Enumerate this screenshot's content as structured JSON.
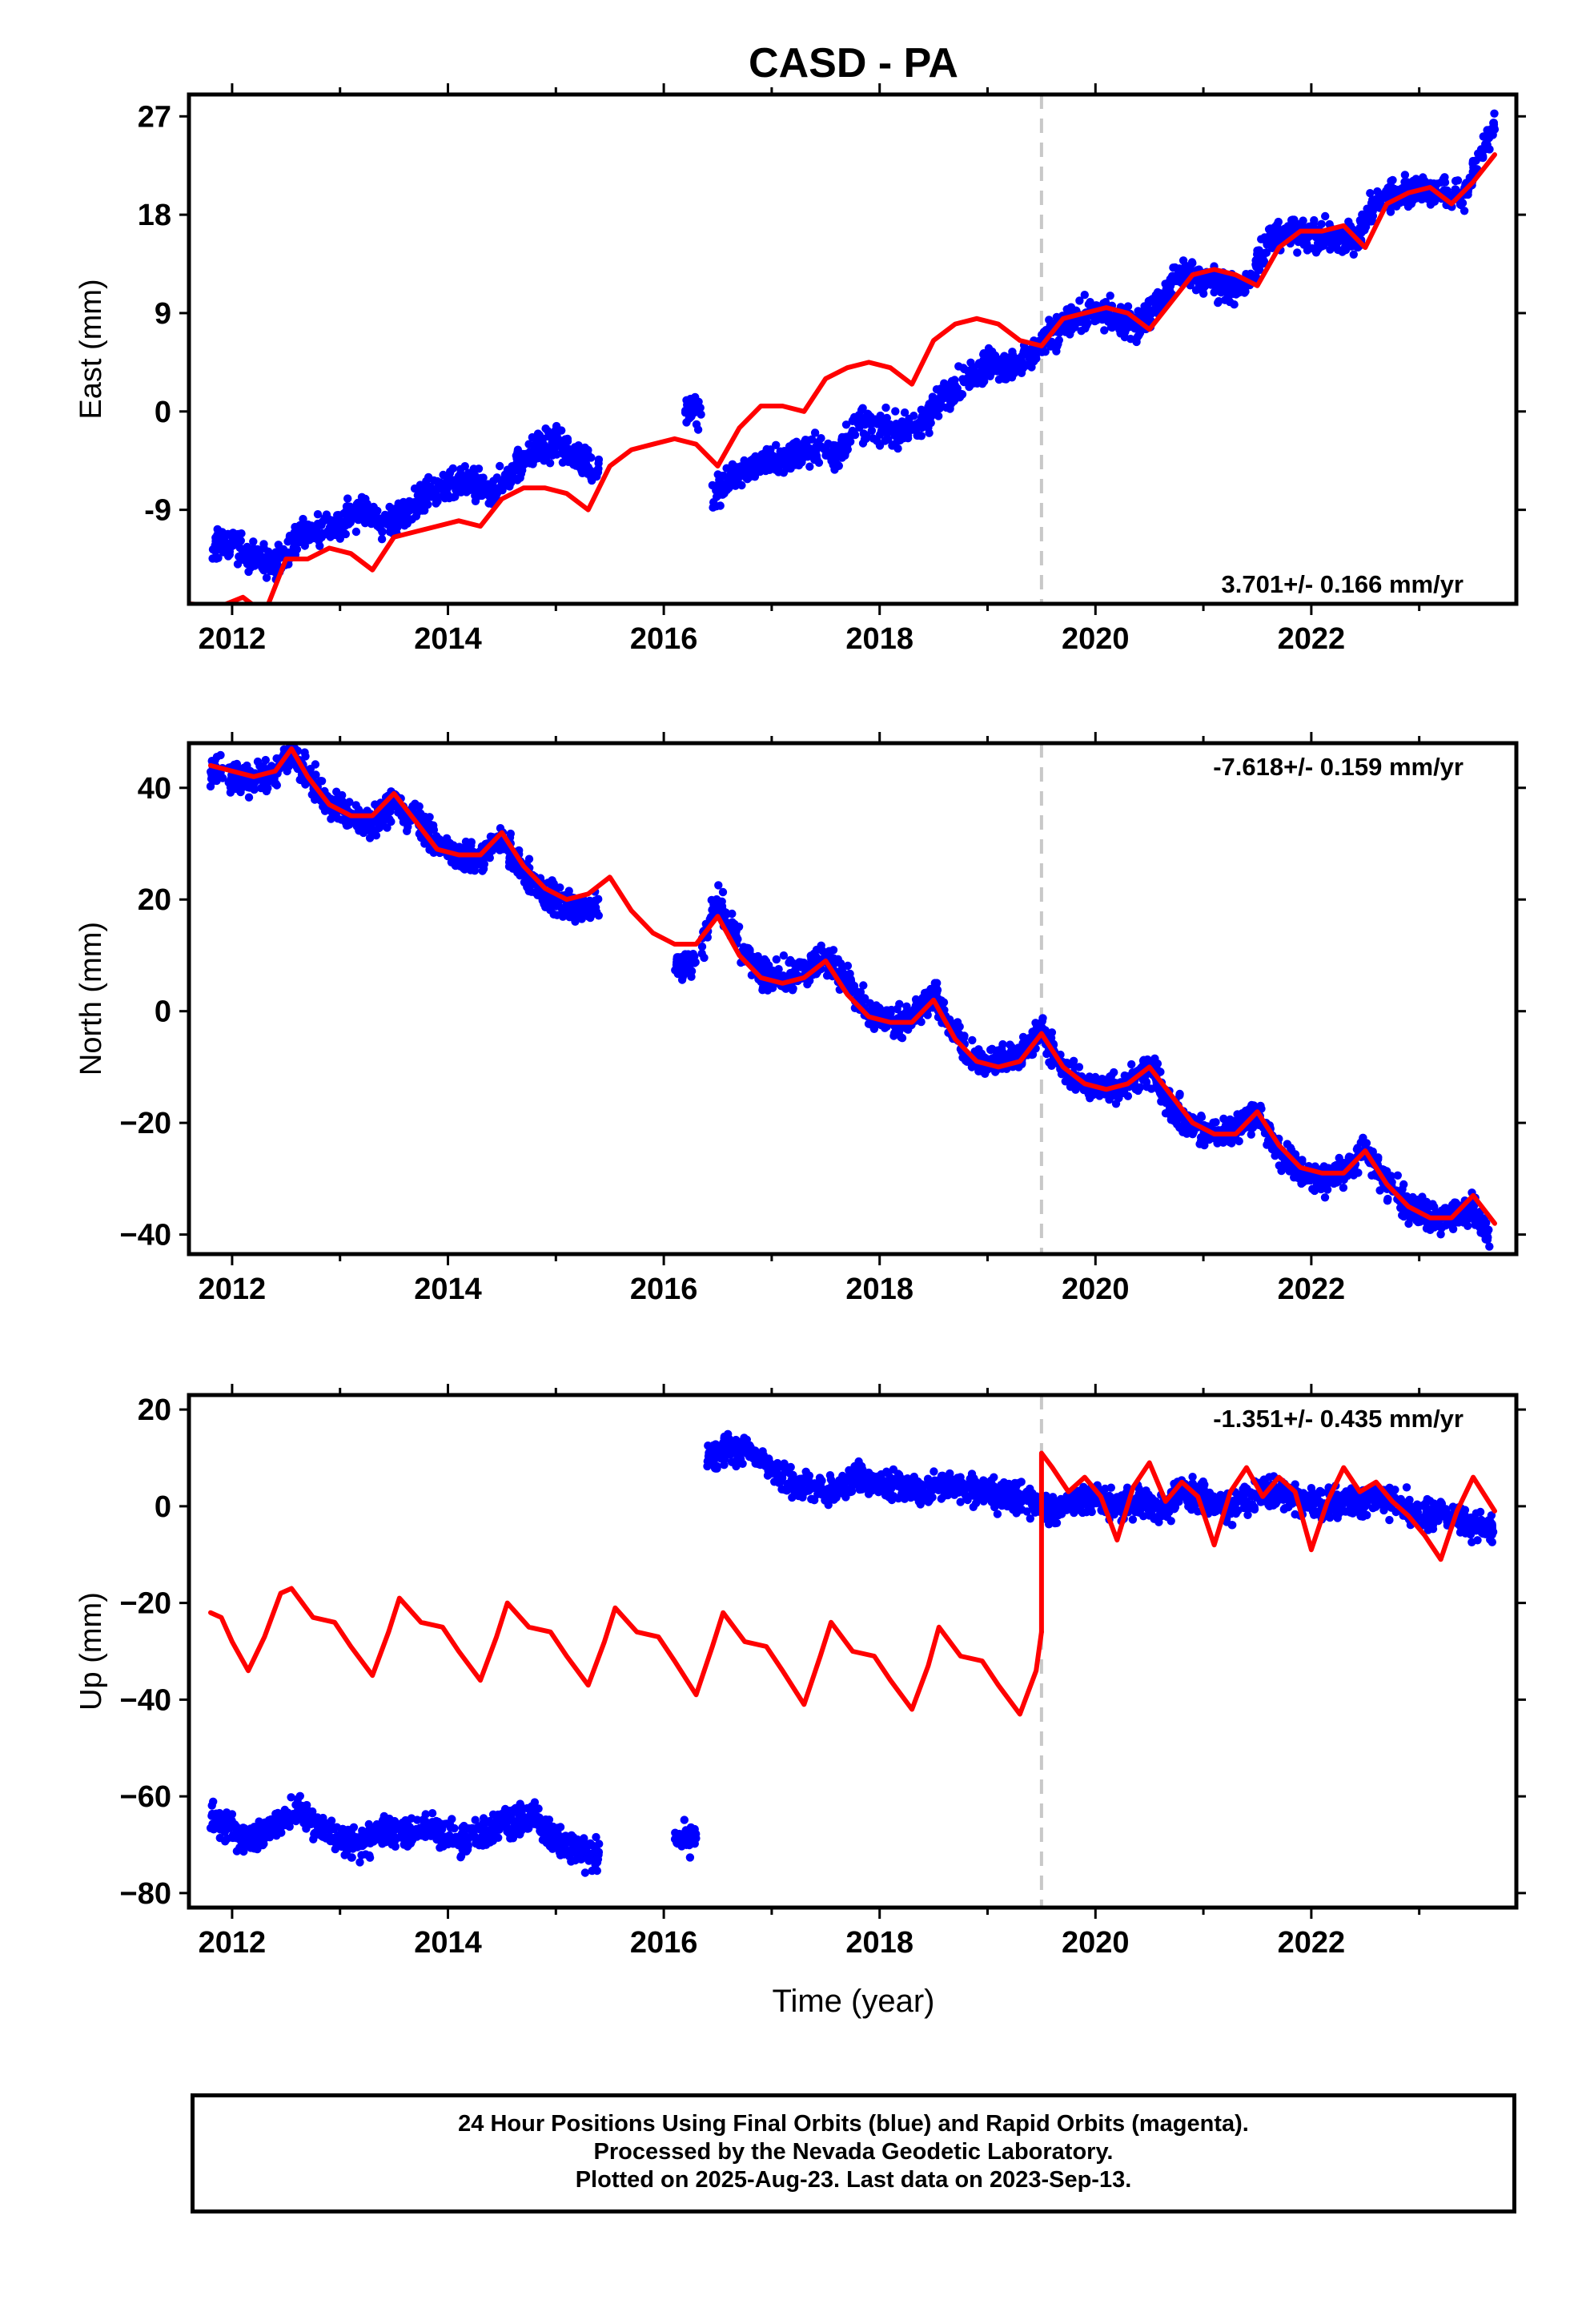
{
  "title": "CASD - PA",
  "break_year": 2019.5,
  "colors": {
    "data": "#0000ff",
    "model": "#ff0000",
    "frame": "#000000",
    "break_line": "#c8c8c8"
  },
  "x_axis": {
    "label": "Time (year)",
    "ticks": [
      "2012",
      "2014",
      "2016",
      "2018",
      "2020",
      "2022"
    ],
    "range": [
      2011.6,
      2023.9
    ]
  },
  "chart_data": [
    {
      "type": "scatter",
      "panel": "east",
      "ylabel": "East (mm)",
      "ylim": [
        -17.6,
        29
      ],
      "yticks": [
        "27",
        "18",
        "9",
        "0",
        "-9"
      ],
      "ytick_values": [
        27,
        18,
        9,
        0,
        -9
      ],
      "rate_text": "3.701+/- 0.166 mm/yr",
      "rate_position": "bottom-right",
      "data_segments": [
        {
          "x": [
            2011.8,
            2012.0,
            2012.2,
            2012.4,
            2012.6,
            2012.8,
            2013.0,
            2013.2,
            2013.4,
            2013.6,
            2013.8,
            2014.0,
            2014.2,
            2014.4,
            2014.6,
            2014.8,
            2015.0,
            2015.2,
            2015.4
          ],
          "y": [
            -12.5,
            -12.0,
            -13.5,
            -14.0,
            -11.5,
            -10.8,
            -10.2,
            -9.0,
            -10.0,
            -9.5,
            -7.5,
            -7.0,
            -6.5,
            -7.5,
            -5.5,
            -3.5,
            -3.0,
            -4.0,
            -5.5
          ]
        },
        {
          "x": [
            2016.2,
            2016.35
          ],
          "y": [
            0.5,
            -0.5
          ]
        },
        {
          "x": [
            2016.45,
            2016.6,
            2016.8,
            2017.0,
            2017.2,
            2017.4,
            2017.6,
            2017.8,
            2018.0,
            2018.2,
            2018.4,
            2018.6,
            2018.8,
            2019.0,
            2019.2,
            2019.4,
            2019.6,
            2019.8,
            2020.0,
            2020.2,
            2020.4,
            2020.6,
            2020.8,
            2021.0,
            2021.2,
            2021.4,
            2021.6,
            2021.8,
            2022.0,
            2022.2,
            2022.4,
            2022.6,
            2022.8,
            2023.0,
            2023.2,
            2023.4,
            2023.6,
            2023.7
          ],
          "y": [
            -8.0,
            -6.0,
            -5.0,
            -4.5,
            -4.0,
            -3.5,
            -4.0,
            -1.0,
            -1.5,
            -2.0,
            -1.0,
            1.5,
            3.0,
            4.5,
            4.0,
            5.0,
            7.0,
            8.5,
            9.0,
            8.5,
            8.0,
            10.0,
            13.0,
            12.0,
            11.5,
            11.0,
            16.0,
            16.5,
            16.0,
            16.0,
            15.5,
            19.0,
            20.0,
            20.5,
            20.0,
            19.5,
            24.0,
            26.5
          ]
        }
      ],
      "model_segments": [
        {
          "x": [
            2011.6,
            2011.9,
            2012.1,
            2012.3,
            2012.5,
            2012.7,
            2012.9,
            2013.1,
            2013.3,
            2013.5,
            2013.7,
            2013.9,
            2014.1,
            2014.3,
            2014.5,
            2014.7,
            2014.9,
            2015.1,
            2015.3,
            2015.5,
            2015.7,
            2015.9,
            2016.1,
            2016.3,
            2016.5,
            2016.7,
            2016.9,
            2017.1,
            2017.3,
            2017.5,
            2017.7,
            2017.9,
            2018.1,
            2018.3,
            2018.5,
            2018.7,
            2018.9,
            2019.1,
            2019.3,
            2019.5
          ],
          "y": [
            -17.6,
            -17.8,
            -17.0,
            -18.5,
            -13.5,
            -13.5,
            -12.5,
            -13.0,
            -14.5,
            -11.5,
            -11.0,
            -10.5,
            -10.0,
            -10.5,
            -8.0,
            -7.0,
            -7.0,
            -7.5,
            -9.0,
            -5.0,
            -3.5,
            -3.0,
            -2.5,
            -3.0,
            -5.0,
            -1.5,
            0.5,
            0.5,
            0.0,
            3.0,
            4.0,
            4.5,
            4.0,
            2.5,
            6.5,
            8.0,
            8.5,
            8.0,
            6.5,
            6.0
          ]
        },
        {
          "x": [
            2019.5,
            2019.7,
            2019.9,
            2020.1,
            2020.3,
            2020.5,
            2020.7,
            2020.9,
            2021.1,
            2021.3,
            2021.5,
            2021.7,
            2021.9,
            2022.1,
            2022.3,
            2022.5,
            2022.7,
            2022.9,
            2023.1,
            2023.3,
            2023.5,
            2023.7
          ],
          "y": [
            6.0,
            8.5,
            9.0,
            9.5,
            9.0,
            7.5,
            10.0,
            12.5,
            13.0,
            12.5,
            11.5,
            15.0,
            16.5,
            16.5,
            17.0,
            15.0,
            19.0,
            20.0,
            20.5,
            19.0,
            21.0,
            23.5
          ]
        }
      ]
    },
    {
      "type": "scatter",
      "panel": "north",
      "ylabel": "North (mm)",
      "ylim": [
        -43.5,
        48
      ],
      "yticks": [
        "40",
        "20",
        "0",
        "−20",
        "−40"
      ],
      "ytick_values": [
        40,
        20,
        0,
        -20,
        -40
      ],
      "rate_text": "-7.618+/- 0.159 mm/yr",
      "rate_position": "top-right",
      "data_segments": [
        {
          "x": [
            2011.8,
            2012.0,
            2012.2,
            2012.4,
            2012.55,
            2012.7,
            2012.9,
            2013.1,
            2013.3,
            2013.5,
            2013.7,
            2013.9,
            2014.1,
            2014.3,
            2014.5,
            2014.7,
            2014.9,
            2015.1,
            2015.3,
            2015.4
          ],
          "y": [
            43,
            42,
            41,
            43,
            46,
            42,
            37,
            35,
            34,
            37,
            35,
            30,
            28,
            27,
            31,
            25,
            21,
            19,
            18,
            19
          ]
        },
        {
          "x": [
            2016.1,
            2016.3
          ],
          "y": [
            8,
            9
          ]
        },
        {
          "x": [
            2016.35,
            2016.5,
            2016.7,
            2016.9,
            2017.1,
            2017.3,
            2017.5,
            2017.7,
            2017.9,
            2018.1,
            2018.3,
            2018.5,
            2018.7,
            2018.9,
            2019.1,
            2019.3,
            2019.5,
            2019.7,
            2019.9,
            2020.1,
            2020.3,
            2020.5,
            2020.7,
            2020.9,
            2021.1,
            2021.3,
            2021.5,
            2021.7,
            2021.9,
            2022.1,
            2022.3,
            2022.5,
            2022.7,
            2022.9,
            2023.1,
            2023.3,
            2023.5,
            2023.65
          ],
          "y": [
            12,
            20,
            12,
            7,
            6,
            7,
            10,
            5,
            -1,
            -2,
            -1,
            3,
            -4,
            -9,
            -9,
            -8,
            -3,
            -11,
            -13,
            -14,
            -13,
            -10,
            -17,
            -21,
            -22,
            -21,
            -18,
            -25,
            -29,
            -30,
            -29,
            -25,
            -31,
            -35,
            -37,
            -37,
            -35,
            -41
          ]
        }
      ],
      "model_segments": [
        {
          "x": [
            2011.8,
            2012.0,
            2012.2,
            2012.4,
            2012.55,
            2012.7,
            2012.9,
            2013.1,
            2013.3,
            2013.5,
            2013.7,
            2013.9,
            2014.1,
            2014.3,
            2014.5,
            2014.7,
            2014.9,
            2015.1,
            2015.3,
            2015.5,
            2015.7,
            2015.9,
            2016.1,
            2016.3,
            2016.5,
            2016.7,
            2016.9,
            2017.1,
            2017.3,
            2017.5,
            2017.7,
            2017.9,
            2018.1,
            2018.3,
            2018.5,
            2018.7,
            2018.9,
            2019.1,
            2019.3,
            2019.5
          ],
          "y": [
            44,
            43,
            42,
            43,
            47,
            42,
            37,
            35,
            35,
            39,
            34,
            29,
            28,
            28,
            32,
            26,
            22,
            20,
            21,
            24,
            18,
            14,
            12,
            12,
            17,
            10,
            6,
            5,
            6,
            9,
            3,
            -1,
            -2,
            -2,
            2,
            -5,
            -9,
            -10,
            -9,
            -4
          ]
        },
        {
          "x": [
            2019.5,
            2019.7,
            2019.9,
            2020.1,
            2020.3,
            2020.5,
            2020.7,
            2020.9,
            2021.1,
            2021.3,
            2021.5,
            2021.7,
            2021.9,
            2022.1,
            2022.3,
            2022.5,
            2022.7,
            2022.9,
            2023.1,
            2023.3,
            2023.5,
            2023.7
          ],
          "y": [
            -4,
            -10,
            -13,
            -14,
            -13,
            -10,
            -15,
            -20,
            -22,
            -22,
            -18,
            -24,
            -28,
            -29,
            -29,
            -25,
            -31,
            -35,
            -37,
            -37,
            -33,
            -38
          ]
        }
      ]
    },
    {
      "type": "scatter",
      "panel": "up",
      "ylabel": "Up (mm)",
      "ylim": [
        -83,
        23
      ],
      "yticks": [
        "20",
        "0",
        "−20",
        "−40",
        "−60",
        "−80"
      ],
      "ytick_values": [
        20,
        0,
        -20,
        -40,
        -60,
        -80
      ],
      "rate_text": "-1.351+/- 0.435 mm/yr",
      "rate_position": "top-right",
      "data_segments": [
        {
          "x": [
            2011.8,
            2012.0,
            2012.2,
            2012.4,
            2012.6,
            2012.8,
            2013.0,
            2013.2,
            2013.4,
            2013.6,
            2013.8,
            2014.0,
            2014.2,
            2014.4,
            2014.6,
            2014.8,
            2015.0,
            2015.2,
            2015.4
          ],
          "y": [
            -64,
            -67,
            -69,
            -66,
            -63,
            -66,
            -69,
            -70,
            -67,
            -68,
            -66,
            -68,
            -69,
            -67,
            -65,
            -64,
            -69,
            -71,
            -72
          ]
        },
        {
          "x": [
            2016.1,
            2016.3
          ],
          "y": [
            -70,
            -68
          ]
        },
        {
          "x": [
            2016.4,
            2016.6,
            2016.8,
            2017.0,
            2017.2,
            2017.4,
            2017.6,
            2017.8,
            2018.0,
            2018.2,
            2018.4,
            2018.6,
            2018.8,
            2019.0,
            2019.2,
            2019.4,
            2019.6,
            2019.8,
            2020.0,
            2020.2,
            2020.4,
            2020.6,
            2020.8,
            2021.0,
            2021.2,
            2021.4,
            2021.6,
            2021.8,
            2022.0,
            2022.2,
            2022.4,
            2022.6,
            2022.8,
            2023.0,
            2023.2,
            2023.4,
            2023.6,
            2023.7
          ],
          "y": [
            9,
            12,
            11,
            8,
            5,
            4,
            3,
            6,
            5,
            4,
            3,
            5,
            4,
            3,
            2,
            1,
            -1,
            1,
            2,
            0,
            1,
            -1,
            3,
            2,
            -1,
            1,
            3,
            2,
            1,
            0,
            1,
            2,
            1,
            -2,
            -1,
            -3,
            -5,
            -4
          ]
        }
      ],
      "model_segments": [
        {
          "x": [
            2011.8,
            2011.9,
            2012.0,
            2012.15,
            2012.3,
            2012.45,
            2012.55,
            2012.75,
            2012.95,
            2013.1,
            2013.3,
            2013.45,
            2013.55,
            2013.75,
            2013.95,
            2014.1,
            2014.3,
            2014.45,
            2014.55,
            2014.75,
            2014.95,
            2015.1,
            2015.3,
            2015.45,
            2015.55,
            2015.75,
            2015.95,
            2016.1,
            2016.3,
            2016.45,
            2016.55,
            2016.75,
            2016.95,
            2017.1,
            2017.3,
            2017.45,
            2017.55,
            2017.75,
            2017.95,
            2018.1,
            2018.3,
            2018.45,
            2018.55,
            2018.75,
            2018.95,
            2019.1,
            2019.3,
            2019.45,
            2019.5
          ],
          "y": [
            -22,
            -23,
            -28,
            -34,
            -27,
            -18,
            -17,
            -23,
            -24,
            -29,
            -35,
            -26,
            -19,
            -24,
            -25,
            -30,
            -36,
            -27,
            -20,
            -25,
            -26,
            -31,
            -37,
            -28,
            -21,
            -26,
            -27,
            -32,
            -39,
            -29,
            -22,
            -28,
            -29,
            -34,
            -41,
            -31,
            -24,
            -30,
            -31,
            -36,
            -42,
            -33,
            -25,
            -31,
            -32,
            -37,
            -43,
            -34,
            -26
          ]
        },
        {
          "x": [
            2019.5,
            2019.5,
            2019.6,
            2019.75,
            2019.9,
            2020.05,
            2020.2,
            2020.35,
            2020.5,
            2020.65,
            2020.8,
            2020.95,
            2021.1,
            2021.25,
            2021.4,
            2021.55,
            2021.7,
            2021.85,
            2022.0,
            2022.15,
            2022.3,
            2022.45,
            2022.6,
            2022.75,
            2022.9,
            2023.05,
            2023.2,
            2023.35,
            2023.5,
            2023.7
          ],
          "y": [
            -26,
            11,
            8,
            3,
            6,
            2,
            -7,
            4,
            9,
            1,
            5,
            2,
            -8,
            3,
            8,
            2,
            6,
            3,
            -9,
            1,
            8,
            3,
            5,
            1,
            -2,
            -6,
            -11,
            -1,
            6,
            -1
          ]
        }
      ]
    }
  ],
  "caption_lines": [
    "24 Hour Positions Using Final Orbits (blue) and Rapid Orbits (magenta).",
    "Processed by the Nevada Geodetic Laboratory.",
    "Plotted on 2025-Aug-23. Last data on 2023-Sep-13."
  ]
}
